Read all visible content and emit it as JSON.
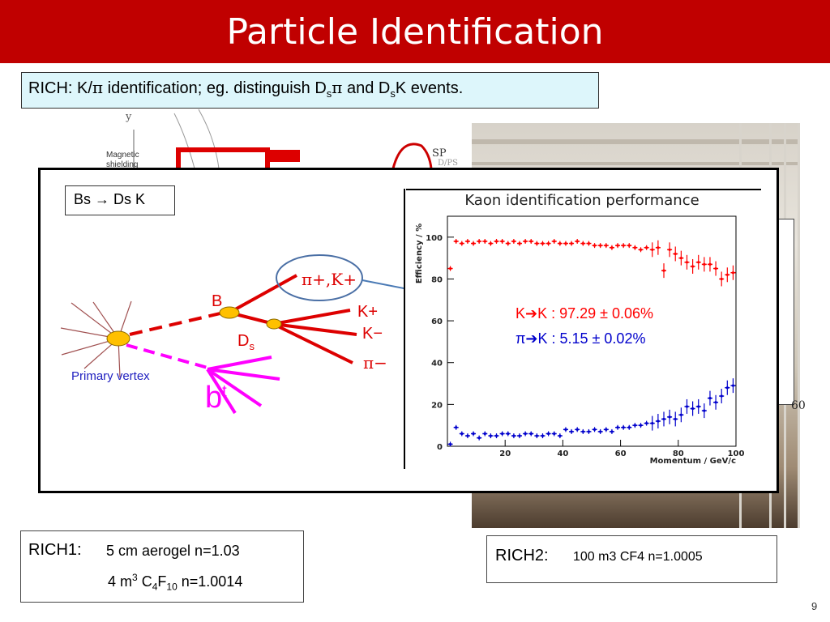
{
  "title": "Particle Identification",
  "rich_box": {
    "prefix": "RICH: K/",
    "pi1": "π",
    "middle": " identification; eg. distinguish D",
    "sub1": "s",
    "pi2": "π",
    "and": " and D",
    "sub2": "s",
    "suffix": "K events."
  },
  "background_sketch": {
    "y_label": "y",
    "magnetic_shielding": "Magnetic shielding",
    "sp_label": "SP",
    "dps_label": "D/PS",
    "tick_60": "60"
  },
  "decay_box_label": "Bs → Ds K",
  "decay_diagram": {
    "pi_k_label": "π+,K+",
    "b_label": "B",
    "ds_label": "D",
    "ds_sub": "s",
    "kplus": "K+",
    "kminus": "K−",
    "piminus": "π−",
    "primary_vertex": "Primary vertex",
    "bt": "b",
    "bt_sup": "t"
  },
  "chart_data": {
    "type": "scatter",
    "title": "Kaon identification performance",
    "xlabel": "Momentum / GeV/c",
    "ylabel": "Efficiency / %",
    "xlim": [
      0,
      100
    ],
    "ylim": [
      0,
      110
    ],
    "xticks": [
      "20",
      "40",
      "60",
      "80",
      "100"
    ],
    "yticks": [
      "0",
      "20",
      "40",
      "60",
      "80",
      "100"
    ],
    "annotations": [
      {
        "text": "K➔K : 97.29 ± 0.06%",
        "color": "#ff0000"
      },
      {
        "text": "π➔K : 5.15 ± 0.02%",
        "color": "#0000cc"
      }
    ],
    "series": [
      {
        "color": "#ff0000",
        "x": [
          1,
          3,
          5,
          7,
          9,
          11,
          13,
          15,
          17,
          19,
          21,
          23,
          25,
          27,
          29,
          31,
          33,
          35,
          37,
          39,
          41,
          43,
          45,
          47,
          49,
          51,
          53,
          55,
          57,
          59,
          61,
          63,
          65,
          67,
          69,
          71,
          73,
          75,
          77,
          79,
          81,
          83,
          85,
          87,
          89,
          91,
          93,
          95,
          97,
          99
        ],
        "y": [
          85,
          98,
          97,
          98,
          97,
          98,
          98,
          97,
          98,
          98,
          97,
          98,
          97,
          98,
          98,
          97,
          97,
          97,
          98,
          97,
          97,
          97,
          98,
          97,
          97,
          96,
          96,
          96,
          95,
          96,
          96,
          96,
          95,
          94,
          95,
          94,
          95,
          84,
          94,
          92,
          90,
          88,
          86,
          88,
          87,
          87,
          85,
          80,
          82,
          83
        ]
      },
      {
        "color": "#0000cc",
        "x": [
          1,
          3,
          5,
          7,
          9,
          11,
          13,
          15,
          17,
          19,
          21,
          23,
          25,
          27,
          29,
          31,
          33,
          35,
          37,
          39,
          41,
          43,
          45,
          47,
          49,
          51,
          53,
          55,
          57,
          59,
          61,
          63,
          65,
          67,
          69,
          71,
          73,
          75,
          77,
          79,
          81,
          83,
          85,
          87,
          89,
          91,
          93,
          95,
          97,
          99
        ],
        "y": [
          1,
          9,
          6,
          5,
          6,
          4,
          6,
          5,
          5,
          6,
          6,
          5,
          5,
          6,
          6,
          5,
          5,
          6,
          6,
          5,
          8,
          7,
          8,
          7,
          7,
          8,
          7,
          8,
          7,
          9,
          9,
          9,
          10,
          10,
          11,
          11,
          12,
          13,
          14,
          13,
          15,
          19,
          18,
          19,
          17,
          23,
          21,
          24,
          28,
          29
        ]
      }
    ]
  },
  "rich1": {
    "head": "RICH1:",
    "line1": "5 cm aerogel n=1.03",
    "line2_a": "4 m",
    "line2_sup": "3",
    "line2_b": " C",
    "line2_sub1": "4",
    "line2_c": "F",
    "line2_sub2": "10",
    "line2_d": " n=1.0014"
  },
  "rich2": {
    "head": "RICH2:",
    "line1": "100 m3 CF4  n=1.0005"
  },
  "page_number": "9"
}
